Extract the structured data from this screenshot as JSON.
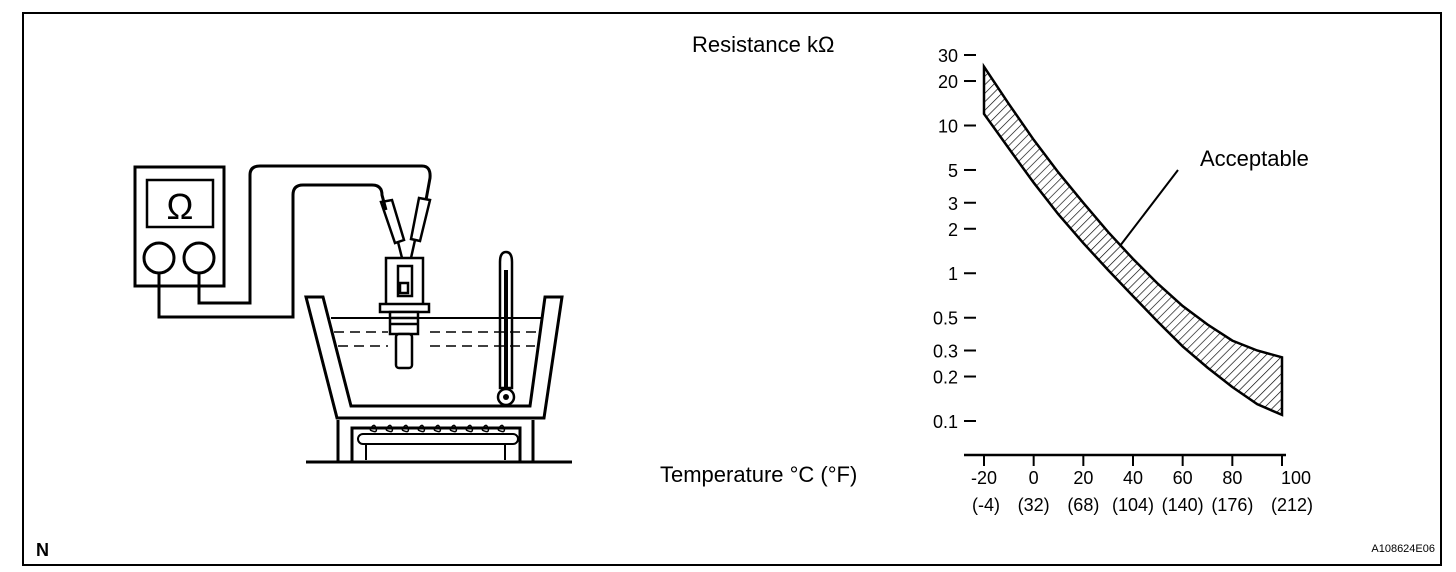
{
  "chart_data": {
    "type": "area",
    "title": "",
    "ylabel": "Resistance kΩ",
    "xlabel": "Temperature °C (°F)",
    "y_scale": "log",
    "ylim": [
      0.1,
      30
    ],
    "xlim": [
      -20,
      100
    ],
    "x_ticks": [
      -20,
      0,
      20,
      40,
      60,
      80,
      100
    ],
    "x_tick_labels": [
      "-20",
      "0",
      "20",
      "40",
      "60",
      "80",
      "100"
    ],
    "x_tick_labels_f": [
      "(-4)",
      "(32)",
      "(68)",
      "(104)",
      "(140)",
      "(176)",
      "(212)"
    ],
    "y_ticks": [
      0.1,
      0.2,
      0.3,
      0.5,
      1,
      2,
      3,
      5,
      10,
      20,
      30
    ],
    "y_tick_labels": [
      "0.1",
      "0.2",
      "0.3",
      "0.5",
      "1",
      "2",
      "3",
      "5",
      "10",
      "20",
      "30"
    ],
    "band_x": [
      -20,
      -10,
      0,
      10,
      20,
      30,
      40,
      50,
      60,
      70,
      80,
      90,
      100
    ],
    "band_upper": [
      25,
      14,
      8,
      4.8,
      3,
      1.9,
      1.25,
      0.85,
      0.6,
      0.45,
      0.35,
      0.3,
      0.27
    ],
    "band_lower": [
      12,
      7,
      4.1,
      2.5,
      1.6,
      1.05,
      0.7,
      0.47,
      0.32,
      0.23,
      0.17,
      0.13,
      0.11
    ],
    "annotation": "Acceptable",
    "band_color": "#000000"
  },
  "meter": {
    "symbol": "Ω"
  },
  "corner_mark": "N",
  "figure_code": "A108624E06"
}
